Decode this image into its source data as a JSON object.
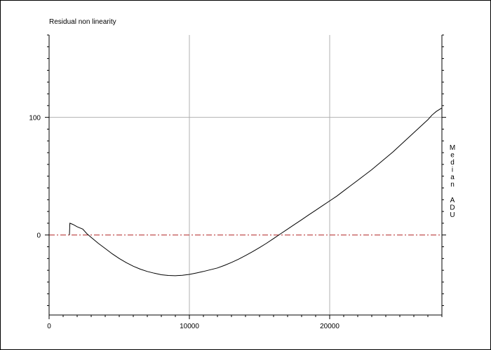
{
  "chart_data": {
    "type": "line",
    "title": "Residual non linearity",
    "xlabel": "",
    "ylabel": "Median ADU",
    "xlim": [
      0,
      28000
    ],
    "ylim": [
      -68,
      170
    ],
    "x_ticks": [
      0,
      10000,
      20000
    ],
    "y_ticks": [
      0,
      100
    ],
    "grid": true,
    "reference_line": {
      "y": 0,
      "color": "#b22222",
      "style": "dash-dot"
    },
    "series": [
      {
        "color": "#000000",
        "x": [
          1450,
          1480,
          1700,
          2000,
          2400,
          2700,
          3000,
          3500,
          4000,
          4500,
          5000,
          5500,
          6000,
          6500,
          7000,
          7500,
          8000,
          8500,
          9000,
          9500,
          10000,
          10500,
          11000,
          11500,
          12000,
          12500,
          13000,
          13500,
          14000,
          14500,
          15000,
          15500,
          16000,
          16500,
          17000,
          17500,
          18000,
          18500,
          19000,
          19500,
          20000,
          20500,
          21000,
          21500,
          22000,
          22500,
          23000,
          23500,
          24000,
          24500,
          25000,
          25500,
          26000,
          26500,
          27000,
          27300,
          27600,
          28000
        ],
        "y": [
          0,
          10,
          9,
          7,
          5,
          1,
          -2,
          -7,
          -11.5,
          -16,
          -20,
          -23.5,
          -26.5,
          -29,
          -31,
          -32.5,
          -33.8,
          -34.4,
          -34.6,
          -34.2,
          -33.5,
          -32.3,
          -31,
          -29.5,
          -28,
          -25.8,
          -23.3,
          -20.6,
          -17.5,
          -14.2,
          -10.7,
          -7,
          -3,
          1,
          5,
          9,
          13,
          17,
          21,
          25,
          29,
          33,
          37.5,
          42,
          46.5,
          51,
          55.5,
          60.5,
          65.5,
          70.5,
          76,
          81.5,
          87,
          92.5,
          98,
          102,
          105,
          108
        ]
      }
    ]
  }
}
